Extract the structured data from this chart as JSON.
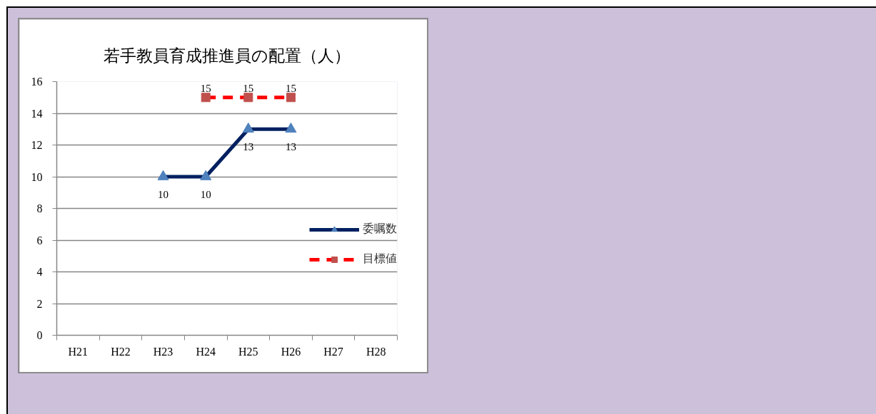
{
  "chart_data": {
    "type": "line",
    "title": "若手教員育成推進員の配置（人）",
    "categories": [
      "H21",
      "H22",
      "H23",
      "H24",
      "H25",
      "H26",
      "H27",
      "H28"
    ],
    "series": [
      {
        "name": "委嘱数",
        "color": "#002060",
        "colors": [
          null,
          null,
          "#4f81bd",
          "#4f81bd",
          "#4f81bd",
          "#4f81bd",
          null,
          null
        ],
        "values": [
          null,
          null,
          10,
          10,
          13,
          13,
          null,
          null
        ],
        "marker": "triangle",
        "line_style": "solid"
      },
      {
        "name": "目標値",
        "color": "#ff0000",
        "colors": [
          null,
          null,
          null,
          "#c0504d",
          "#c0504d",
          "#c0504d",
          null,
          null
        ],
        "values": [
          null,
          null,
          null,
          15,
          15,
          15,
          null,
          null
        ],
        "marker": "square",
        "line_style": "dashed"
      }
    ],
    "ylim": [
      0,
      16
    ],
    "yticks": [
      0,
      2,
      4,
      6,
      8,
      10,
      12,
      14,
      16
    ],
    "grid": "y",
    "legend": "right",
    "data_labels": true
  }
}
